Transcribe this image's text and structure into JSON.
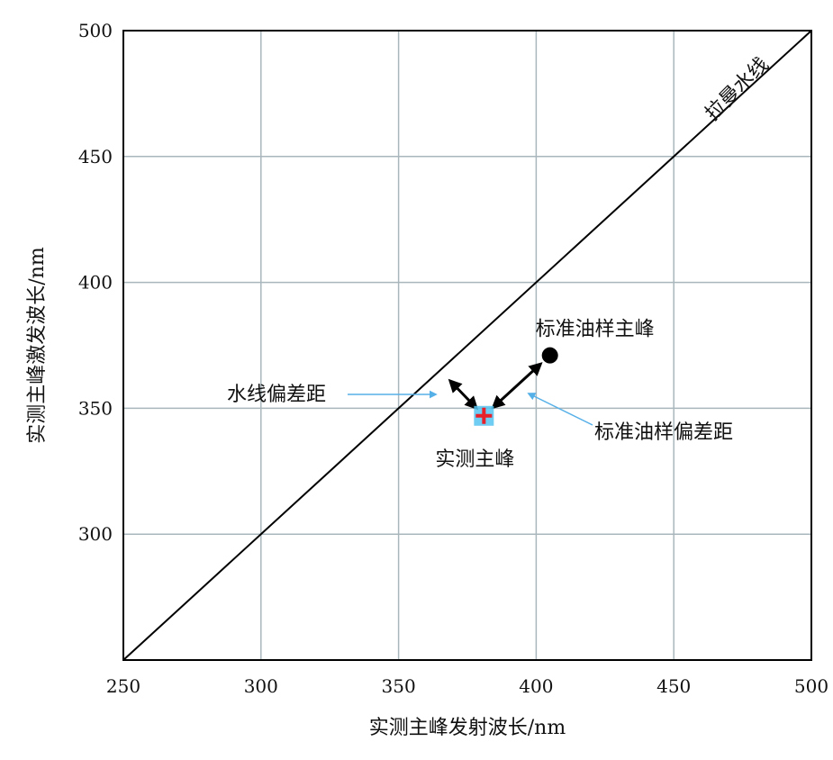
{
  "chart_data": {
    "type": "scatter",
    "title": "",
    "xlabel": "实测主峰发射波长/nm",
    "ylabel": "实测主峰激发波长/nm",
    "xlim": [
      250,
      500
    ],
    "ylim": [
      250,
      500
    ],
    "x_ticks": [
      250,
      300,
      350,
      400,
      450,
      500
    ],
    "y_ticks": [
      300,
      350,
      400,
      450,
      500
    ],
    "grid": true,
    "reference_line": {
      "label": "拉曼水线",
      "x": [
        250,
        500
      ],
      "y": [
        250,
        500
      ]
    },
    "points": [
      {
        "label": "实测主峰",
        "x": 381,
        "y": 347,
        "marker": "plus",
        "color": "#e8202a",
        "halo": "#56c3f0"
      },
      {
        "label": "标准油样主峰",
        "x": 405,
        "y": 371,
        "marker": "circle",
        "color": "#000000"
      }
    ],
    "distances": [
      {
        "label": "水线偏差距",
        "from": [
          381,
          347
        ],
        "to": [
          366,
          364
        ]
      },
      {
        "label": "标准油样偏差距",
        "from": [
          381,
          347
        ],
        "to": [
          405,
          371
        ]
      }
    ],
    "colors": {
      "grid": "#a9b7bd",
      "frame": "#000000",
      "callout": "#56b0e8"
    }
  }
}
